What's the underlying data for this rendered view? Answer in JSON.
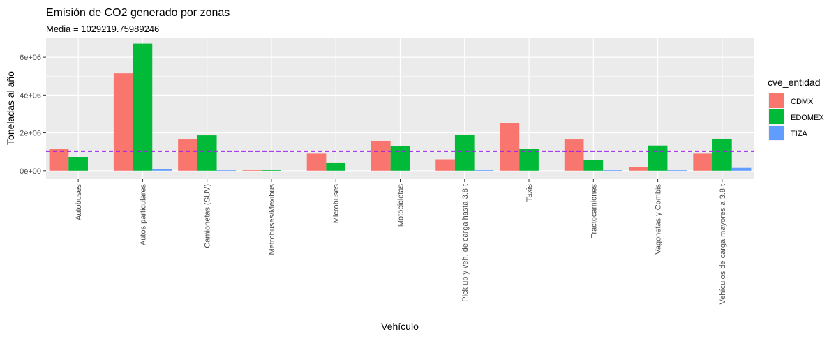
{
  "chart_data": {
    "type": "bar",
    "title": "Emisión de CO2 generado por zonas",
    "subtitle": "Media = 1029219.75989246",
    "xlabel": "Vehículo",
    "ylabel": "Toneladas al año",
    "ylim": [
      -450000,
      7000000
    ],
    "yticks": [
      0,
      2000000,
      4000000,
      6000000
    ],
    "ytick_labels": [
      "0e+00",
      "2e+06",
      "4e+06",
      "6e+06"
    ],
    "grid": true,
    "legend_title": "cve_entidad",
    "legend_position": "right",
    "mean_line": 1029219.75989246,
    "mean_line_color": "#A020F0",
    "categories": [
      "Autobuses",
      "Autos particulares",
      "Camionetas (SUV)",
      "Metrobuses/Mexibús",
      "Microbuses",
      "Motocicletas",
      "Pick up y veh. de carga hasta 3.8 t",
      "Taxis",
      "Tractocamiones",
      "Vagonetas y Combis",
      "Vehículos de carga mayores a 3.8 t"
    ],
    "series": [
      {
        "name": "CDMX",
        "color": "#F8766D",
        "values": [
          1150000,
          5150000,
          1650000,
          30000,
          900000,
          1580000,
          600000,
          2500000,
          1650000,
          200000,
          900000
        ]
      },
      {
        "name": "EDOMEX",
        "color": "#00BA38",
        "values": [
          730000,
          6720000,
          1870000,
          30000,
          400000,
          1290000,
          1910000,
          1150000,
          550000,
          1330000,
          1690000
        ]
      },
      {
        "name": "TIZA",
        "color": "#619CFF",
        "values": [
          0,
          70000,
          20000,
          0,
          0,
          0,
          30000,
          0,
          20000,
          20000,
          150000
        ]
      }
    ]
  }
}
